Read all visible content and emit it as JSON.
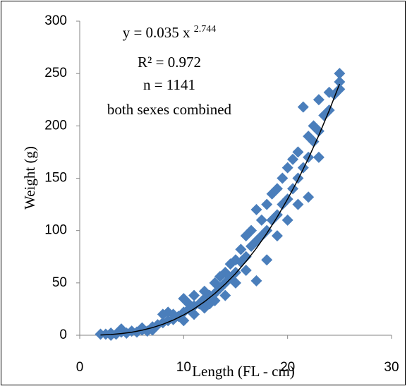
{
  "chart_data": {
    "type": "scatter",
    "x_label": "Length (FL - cm)",
    "y_label": "Weight (g)",
    "annotations": [
      {
        "text": "y = 0.035 x ",
        "superscript": "2.744"
      },
      "R² = 0.972",
      "n = 1141",
      "both sexes combined"
    ],
    "xlim": [
      0,
      30
    ],
    "xticks": [
      0,
      10,
      20,
      30
    ],
    "ylim": [
      0,
      300
    ],
    "yticks": [
      0,
      50,
      100,
      150,
      200,
      250,
      300
    ],
    "grid": false,
    "series": [
      {
        "type": "scatter",
        "color": "#4a7ebb",
        "x": [
          2,
          2.5,
          3,
          3,
          3.5,
          4,
          4,
          4.5,
          5,
          5.5,
          6,
          6,
          6.5,
          7,
          7,
          7.5,
          8,
          8,
          8.5,
          8.5,
          9,
          9,
          9.5,
          10,
          10,
          10,
          10.5,
          10.5,
          11,
          11,
          11,
          11.5,
          12,
          12,
          12,
          12.5,
          12.5,
          13,
          13,
          13,
          13.5,
          13.5,
          14,
          14,
          14,
          14.5,
          14.5,
          15,
          15,
          15,
          15.5,
          15.5,
          16,
          16,
          16,
          16.5,
          16.5,
          17,
          17,
          17,
          17.5,
          17.5,
          18,
          18,
          18,
          18.5,
          18.5,
          19,
          19,
          19,
          19.5,
          19.5,
          20,
          20,
          20,
          20.5,
          20.5,
          21,
          21,
          21,
          21.5,
          21.5,
          22,
          22,
          22,
          22.5,
          22.5,
          23,
          23,
          23,
          23.5,
          24,
          24,
          24.5,
          25,
          25,
          25
        ],
        "values": [
          1,
          1,
          2,
          0,
          1,
          3,
          6,
          2,
          4,
          3,
          5,
          7,
          4,
          8,
          5,
          10,
          12,
          20,
          14,
          22,
          15,
          20,
          18,
          22,
          35,
          14,
          25,
          30,
          28,
          38,
          20,
          30,
          35,
          42,
          26,
          38,
          30,
          40,
          50,
          33,
          45,
          56,
          50,
          60,
          38,
          55,
          68,
          60,
          72,
          50,
          70,
          82,
          75,
          95,
          62,
          85,
          100,
          90,
          120,
          52,
          95,
          110,
          100,
          125,
          72,
          110,
          135,
          115,
          140,
          95,
          125,
          150,
          130,
          160,
          110,
          140,
          168,
          150,
          175,
          125,
          160,
          218,
          170,
          190,
          132,
          185,
          200,
          195,
          225,
          170,
          210,
          215,
          232,
          230,
          250,
          235,
          242
        ]
      },
      {
        "type": "line",
        "color": "#000000",
        "x": [
          2,
          3,
          4,
          5,
          6,
          7,
          8,
          9,
          10,
          11,
          12,
          13,
          14,
          15,
          16,
          17,
          18,
          19,
          20,
          21,
          22,
          23,
          24,
          25
        ],
        "values": [
          0.23,
          0.71,
          1.57,
          2.9,
          4.78,
          7.29,
          10.5,
          14.5,
          19.4,
          25.2,
          32.0,
          39.9,
          48.9,
          59.0,
          70.5,
          83.1,
          97.3,
          112.9,
          130.1,
          148.6,
          168.9,
          190.9,
          214.6,
          240
        ]
      }
    ]
  }
}
